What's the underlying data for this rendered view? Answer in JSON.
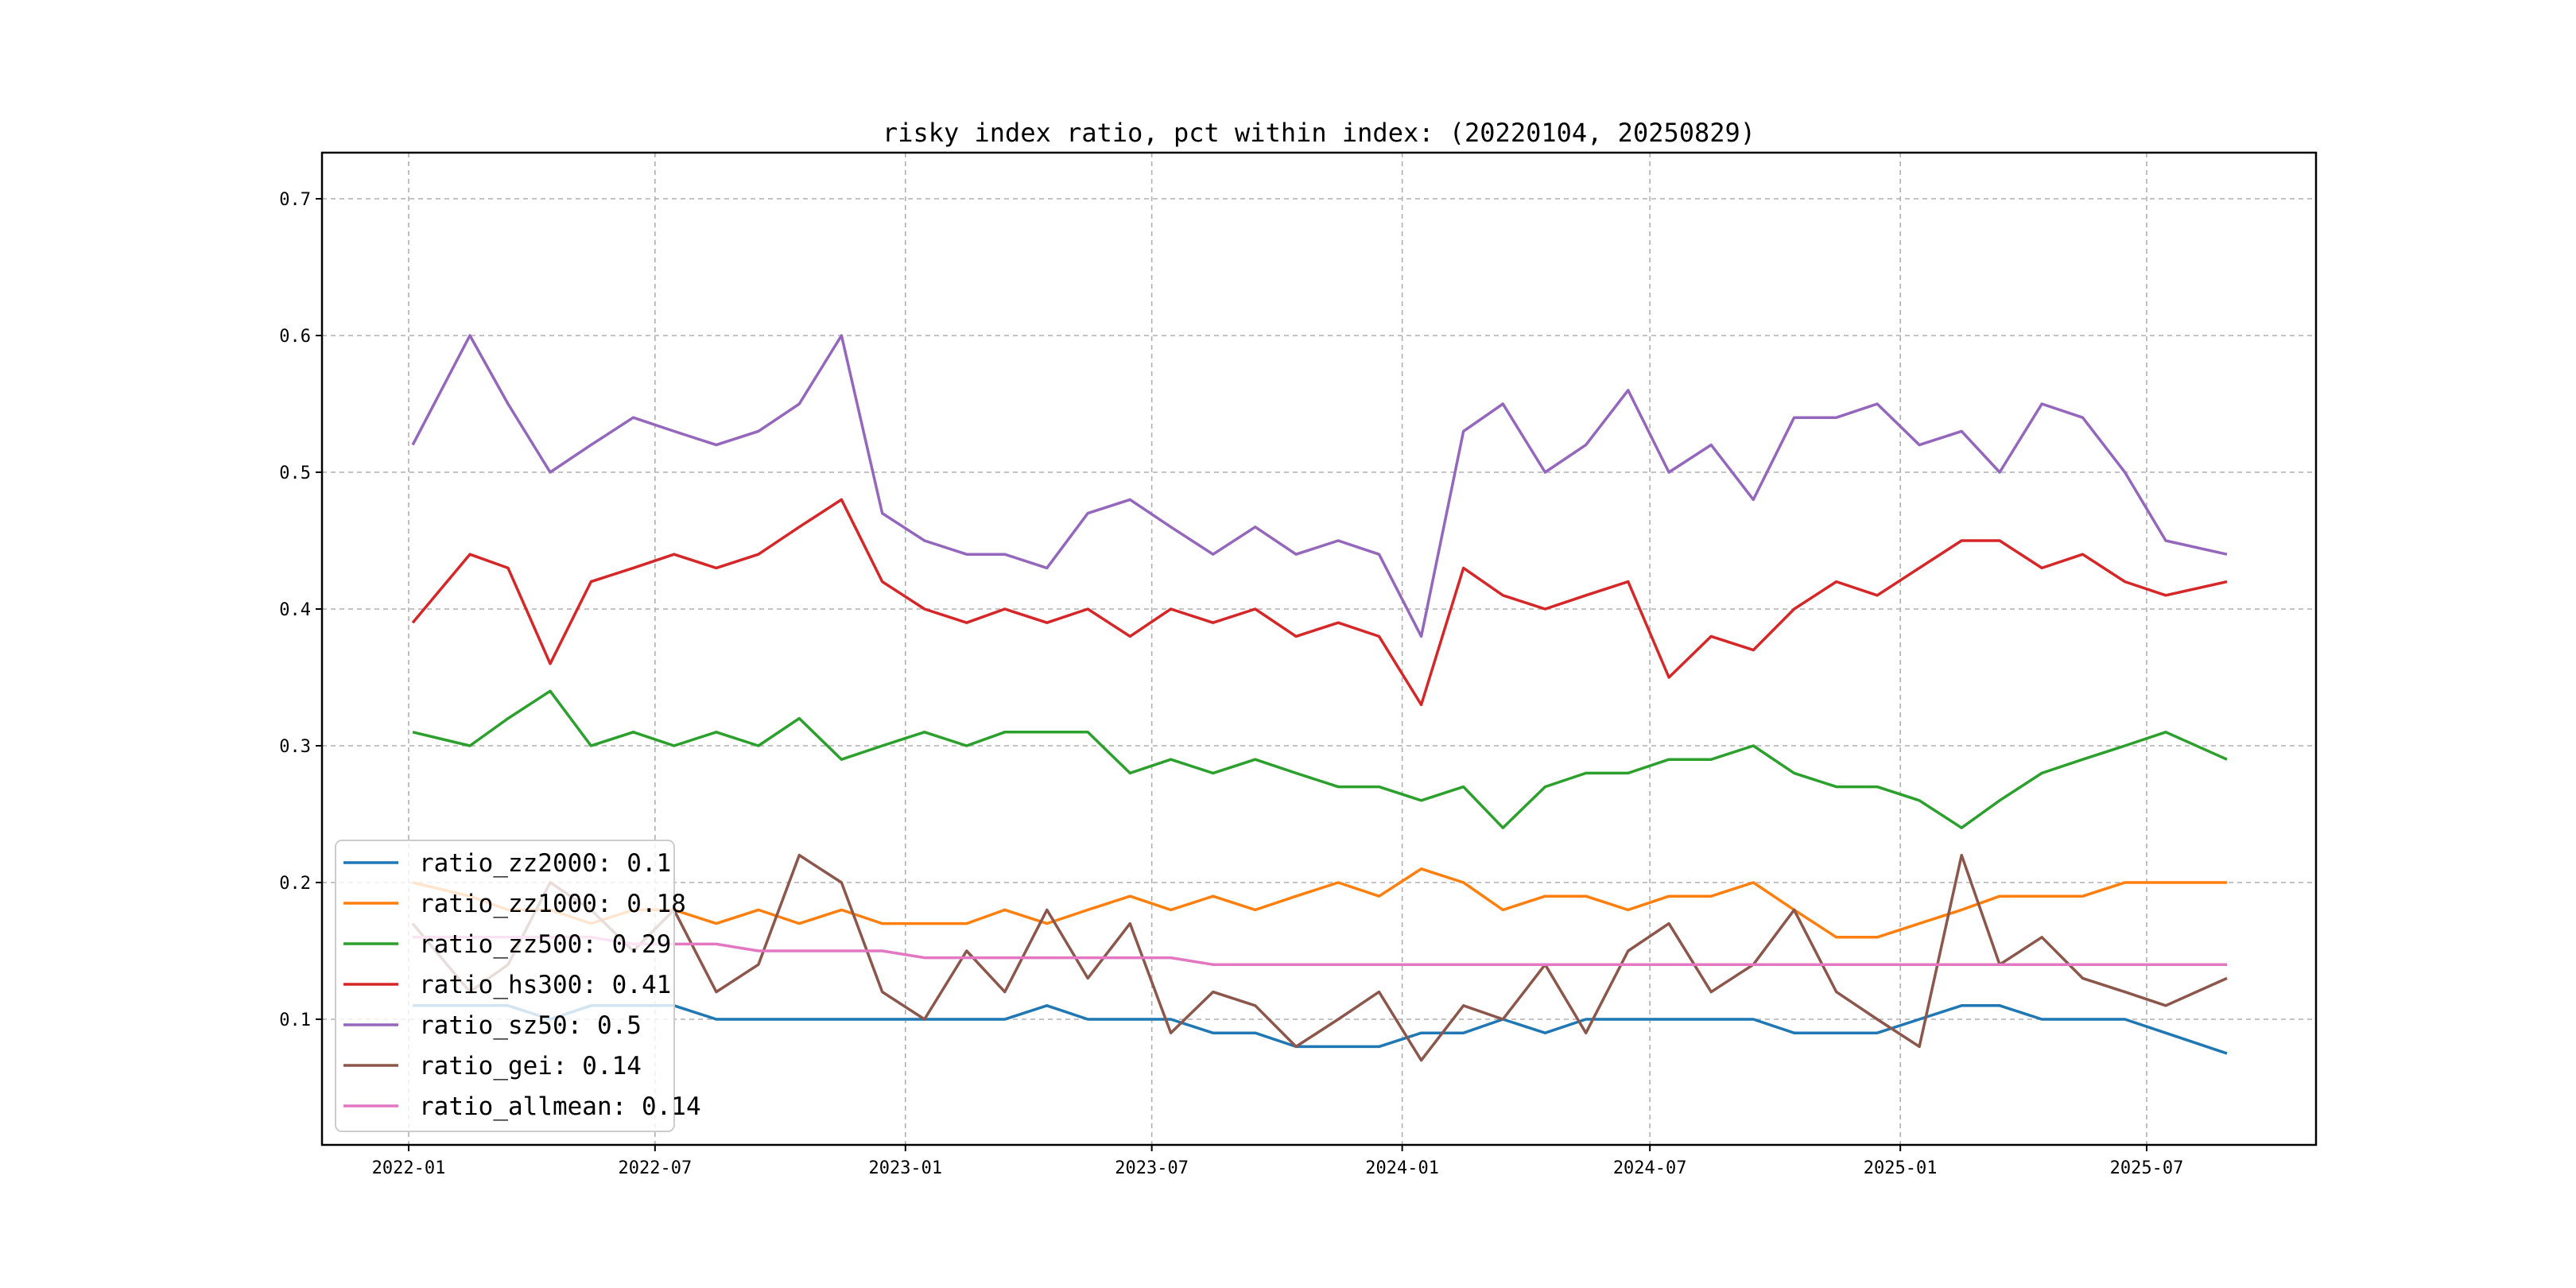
{
  "chart_data": {
    "type": "line",
    "title": "risky index ratio, pct within index: (20220104, 20250829)",
    "xlabel": "",
    "ylabel": "",
    "ylim": [
      0.008,
      0.733
    ],
    "xlim": [
      "2021-11-20",
      "2025-10-10"
    ],
    "grid": true,
    "legend_position": "lower-left",
    "x_ticks": [
      "2022-01",
      "2022-07",
      "2023-01",
      "2023-07",
      "2024-01",
      "2024-07",
      "2025-01",
      "2025-07"
    ],
    "y_ticks": [
      0.1,
      0.2,
      0.3,
      0.4,
      0.5,
      0.6,
      0.7
    ],
    "x": [
      "2022-01-04",
      "2022-02-15",
      "2022-03-15",
      "2022-04-15",
      "2022-05-15",
      "2022-06-15",
      "2022-07-15",
      "2022-08-15",
      "2022-09-15",
      "2022-10-15",
      "2022-11-15",
      "2022-12-15",
      "2023-01-15",
      "2023-02-15",
      "2023-03-15",
      "2023-04-15",
      "2023-05-15",
      "2023-06-15",
      "2023-07-15",
      "2023-08-15",
      "2023-09-15",
      "2023-10-15",
      "2023-11-15",
      "2023-12-15",
      "2024-01-15",
      "2024-02-15",
      "2024-03-15",
      "2024-04-15",
      "2024-05-15",
      "2024-06-15",
      "2024-07-15",
      "2024-08-15",
      "2024-09-15",
      "2024-10-15",
      "2024-11-15",
      "2024-12-15",
      "2025-01-15",
      "2025-02-15",
      "2025-03-15",
      "2025-04-15",
      "2025-05-15",
      "2025-06-15",
      "2025-07-15",
      "2025-08-29"
    ],
    "series": [
      {
        "name": "ratio_zz2000",
        "legend": "ratio_zz2000: 0.1",
        "color": "#1f77b4",
        "values": [
          0.11,
          0.11,
          0.11,
          0.1,
          0.11,
          0.11,
          0.11,
          0.1,
          0.1,
          0.1,
          0.1,
          0.1,
          0.1,
          0.1,
          0.1,
          0.11,
          0.1,
          0.1,
          0.1,
          0.09,
          0.09,
          0.08,
          0.08,
          0.08,
          0.09,
          0.09,
          0.1,
          0.09,
          0.1,
          0.1,
          0.1,
          0.1,
          0.1,
          0.09,
          0.09,
          0.09,
          0.1,
          0.11,
          0.11,
          0.1,
          0.1,
          0.1,
          0.09,
          0.075
        ]
      },
      {
        "name": "ratio_zz1000",
        "legend": "ratio_zz1000: 0.18",
        "color": "#ff7f0e",
        "values": [
          0.2,
          0.19,
          0.18,
          0.18,
          0.17,
          0.18,
          0.18,
          0.17,
          0.18,
          0.17,
          0.18,
          0.17,
          0.17,
          0.17,
          0.18,
          0.17,
          0.18,
          0.19,
          0.18,
          0.19,
          0.18,
          0.19,
          0.2,
          0.19,
          0.21,
          0.2,
          0.18,
          0.19,
          0.19,
          0.18,
          0.19,
          0.19,
          0.2,
          0.18,
          0.16,
          0.16,
          0.17,
          0.18,
          0.19,
          0.19,
          0.19,
          0.2,
          0.2,
          0.2
        ]
      },
      {
        "name": "ratio_zz500",
        "legend": "ratio_zz500: 0.29",
        "color": "#2ca02c",
        "values": [
          0.31,
          0.3,
          0.32,
          0.34,
          0.3,
          0.31,
          0.3,
          0.31,
          0.3,
          0.32,
          0.29,
          0.3,
          0.31,
          0.3,
          0.31,
          0.31,
          0.31,
          0.28,
          0.29,
          0.28,
          0.29,
          0.28,
          0.27,
          0.27,
          0.26,
          0.27,
          0.24,
          0.27,
          0.28,
          0.28,
          0.29,
          0.29,
          0.3,
          0.28,
          0.27,
          0.27,
          0.26,
          0.24,
          0.26,
          0.28,
          0.29,
          0.3,
          0.31,
          0.29
        ]
      },
      {
        "name": "ratio_hs300",
        "legend": "ratio_hs300: 0.41",
        "color": "#d62728",
        "values": [
          0.39,
          0.44,
          0.43,
          0.36,
          0.42,
          0.43,
          0.44,
          0.43,
          0.44,
          0.46,
          0.48,
          0.42,
          0.4,
          0.39,
          0.4,
          0.39,
          0.4,
          0.38,
          0.4,
          0.39,
          0.4,
          0.38,
          0.39,
          0.38,
          0.33,
          0.43,
          0.41,
          0.4,
          0.41,
          0.42,
          0.35,
          0.38,
          0.37,
          0.4,
          0.42,
          0.41,
          0.43,
          0.45,
          0.45,
          0.43,
          0.44,
          0.42,
          0.41,
          0.42
        ]
      },
      {
        "name": "ratio_sz50",
        "legend": "ratio_sz50: 0.5",
        "color": "#9467bd",
        "values": [
          0.52,
          0.6,
          0.55,
          0.5,
          0.52,
          0.54,
          0.53,
          0.52,
          0.53,
          0.55,
          0.6,
          0.47,
          0.45,
          0.44,
          0.44,
          0.43,
          0.47,
          0.48,
          0.46,
          0.44,
          0.46,
          0.44,
          0.45,
          0.44,
          0.38,
          0.53,
          0.55,
          0.5,
          0.52,
          0.56,
          0.5,
          0.52,
          0.48,
          0.54,
          0.54,
          0.55,
          0.52,
          0.53,
          0.5,
          0.55,
          0.54,
          0.5,
          0.45,
          0.44
        ]
      },
      {
        "name": "ratio_gei",
        "legend": "ratio_gei: 0.14",
        "color": "#8c564b",
        "values": [
          0.17,
          0.12,
          0.14,
          0.2,
          0.18,
          0.15,
          0.18,
          0.12,
          0.14,
          0.22,
          0.2,
          0.12,
          0.1,
          0.15,
          0.12,
          0.18,
          0.13,
          0.17,
          0.09,
          0.12,
          0.11,
          0.08,
          0.1,
          0.12,
          0.07,
          0.11,
          0.1,
          0.14,
          0.09,
          0.15,
          0.17,
          0.12,
          0.14,
          0.18,
          0.12,
          0.1,
          0.08,
          0.22,
          0.14,
          0.16,
          0.13,
          0.12,
          0.11,
          0.13
        ]
      },
      {
        "name": "ratio_allmean",
        "legend": "ratio_allmean: 0.14",
        "color": "#e377c2",
        "values": [
          0.16,
          0.16,
          0.16,
          0.16,
          0.16,
          0.155,
          0.155,
          0.155,
          0.15,
          0.15,
          0.15,
          0.15,
          0.145,
          0.145,
          0.145,
          0.145,
          0.145,
          0.145,
          0.145,
          0.14,
          0.14,
          0.14,
          0.14,
          0.14,
          0.14,
          0.14,
          0.14,
          0.14,
          0.14,
          0.14,
          0.14,
          0.14,
          0.14,
          0.14,
          0.14,
          0.14,
          0.14,
          0.14,
          0.14,
          0.14,
          0.14,
          0.14,
          0.14,
          0.14
        ]
      }
    ]
  }
}
